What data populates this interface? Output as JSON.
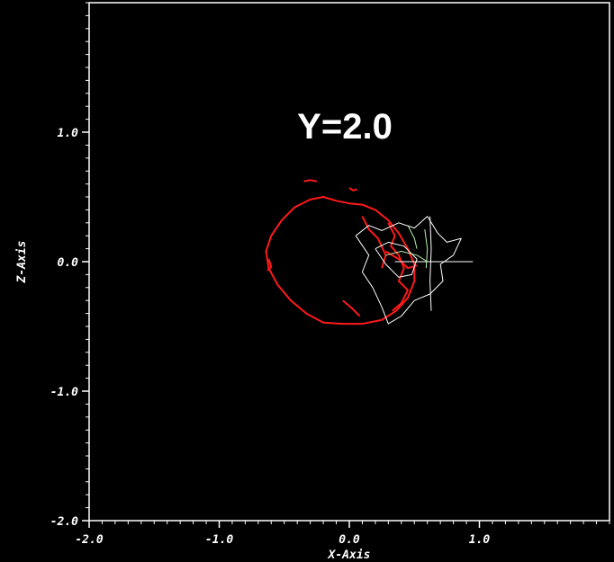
{
  "chart_data": {
    "type": "contour",
    "title": "Y=2.0",
    "xlabel": "X-Axis",
    "ylabel": "Z-Axis",
    "xlim": [
      -2.0,
      2.0
    ],
    "ylim": [
      -2.0,
      2.0
    ],
    "x_ticks": [
      {
        "value": -2.0,
        "label": "-2.0"
      },
      {
        "value": -1.0,
        "label": "-1.0"
      },
      {
        "value": 0.0,
        "label": "0.0"
      },
      {
        "value": 1.0,
        "label": "1.0"
      }
    ],
    "y_ticks": [
      {
        "value": -2.0,
        "label": "-2.0"
      },
      {
        "value": -1.0,
        "label": "-1.0"
      },
      {
        "value": 0.0,
        "label": "0.0"
      },
      {
        "value": 1.0,
        "label": "1.0"
      }
    ],
    "grid": false,
    "background": "#000000",
    "axis_color": "#ffffff",
    "series": [
      {
        "color": "#ff1a1a",
        "contours": [
          [
            [
              -0.3,
              0.48
            ],
            [
              -0.2,
              0.5
            ],
            [
              -0.1,
              0.47
            ],
            [
              0.0,
              0.45
            ],
            [
              0.1,
              0.44
            ],
            [
              0.2,
              0.4
            ],
            [
              0.3,
              0.32
            ],
            [
              0.38,
              0.22
            ],
            [
              0.45,
              0.1
            ],
            [
              0.5,
              -0.02
            ],
            [
              0.5,
              -0.15
            ],
            [
              0.45,
              -0.28
            ],
            [
              0.36,
              -0.38
            ],
            [
              0.25,
              -0.45
            ],
            [
              0.1,
              -0.48
            ],
            [
              -0.05,
              -0.48
            ],
            [
              -0.2,
              -0.47
            ],
            [
              -0.33,
              -0.4
            ],
            [
              -0.45,
              -0.3
            ],
            [
              -0.55,
              -0.18
            ],
            [
              -0.62,
              -0.05
            ],
            [
              -0.64,
              0.08
            ],
            [
              -0.6,
              0.2
            ],
            [
              -0.52,
              0.32
            ],
            [
              -0.42,
              0.42
            ],
            [
              -0.3,
              0.48
            ]
          ],
          [
            [
              0.3,
              0.3
            ],
            [
              0.35,
              0.2
            ],
            [
              0.32,
              0.12
            ],
            [
              0.38,
              0.05
            ],
            [
              0.42,
              -0.05
            ],
            [
              0.38,
              -0.15
            ],
            [
              0.45,
              -0.22
            ],
            [
              0.4,
              -0.32
            ],
            [
              0.33,
              -0.38
            ]
          ],
          [
            [
              0.1,
              0.35
            ],
            [
              0.15,
              0.25
            ],
            [
              0.22,
              0.18
            ],
            [
              0.28,
              0.05
            ],
            [
              0.25,
              -0.05
            ]
          ],
          [
            [
              -0.05,
              -0.3
            ],
            [
              0.02,
              -0.36
            ],
            [
              0.08,
              -0.42
            ]
          ],
          [
            [
              -0.35,
              0.62
            ],
            [
              -0.3,
              0.63
            ],
            [
              -0.25,
              0.62
            ]
          ],
          [
            [
              0.0,
              0.57
            ],
            [
              0.03,
              0.55
            ],
            [
              0.06,
              0.56
            ]
          ],
          [
            [
              0.28,
              0.08
            ],
            [
              0.38,
              0.02
            ],
            [
              0.45,
              -0.05
            ],
            [
              0.52,
              -0.03
            ]
          ],
          [
            [
              -0.62,
              0.02
            ],
            [
              -0.6,
              -0.04
            ],
            [
              -0.63,
              -0.07
            ]
          ]
        ]
      },
      {
        "color": "#ffffff",
        "contours": [
          [
            [
              0.05,
              0.2
            ],
            [
              0.15,
              0.28
            ],
            [
              0.25,
              0.24
            ],
            [
              0.38,
              0.3
            ],
            [
              0.5,
              0.26
            ],
            [
              0.6,
              0.35
            ],
            [
              0.68,
              0.22
            ],
            [
              0.75,
              0.15
            ],
            [
              0.86,
              0.18
            ],
            [
              0.8,
              0.05
            ],
            [
              0.7,
              -0.02
            ],
            [
              0.72,
              -0.15
            ],
            [
              0.62,
              -0.25
            ],
            [
              0.5,
              -0.3
            ],
            [
              0.4,
              -0.42
            ],
            [
              0.3,
              -0.48
            ],
            [
              0.25,
              -0.35
            ],
            [
              0.18,
              -0.2
            ],
            [
              0.1,
              -0.08
            ],
            [
              0.15,
              0.05
            ],
            [
              0.05,
              0.2
            ]
          ],
          [
            [
              0.2,
              0.1
            ],
            [
              0.3,
              0.15
            ],
            [
              0.42,
              0.12
            ],
            [
              0.52,
              0.02
            ],
            [
              0.48,
              -0.1
            ],
            [
              0.38,
              -0.12
            ],
            [
              0.28,
              -0.02
            ],
            [
              0.2,
              0.1
            ]
          ],
          [
            [
              0.35,
              0.0
            ],
            [
              0.55,
              0.0
            ],
            [
              0.75,
              0.0
            ],
            [
              0.95,
              0.0
            ]
          ],
          [
            [
              0.62,
              0.35
            ],
            [
              0.63,
              0.1
            ],
            [
              0.62,
              -0.15
            ],
            [
              0.63,
              -0.38
            ]
          ]
        ]
      },
      {
        "color": "#b8f0b0",
        "contours": [
          [
            [
              0.28,
              0.05
            ],
            [
              0.4,
              0.08
            ],
            [
              0.52,
              0.05
            ],
            [
              0.6,
              0.0
            ]
          ],
          [
            [
              0.58,
              0.25
            ],
            [
              0.6,
              0.1
            ],
            [
              0.59,
              -0.05
            ]
          ],
          [
            [
              0.45,
              0.28
            ],
            [
              0.5,
              0.18
            ],
            [
              0.52,
              0.1
            ]
          ]
        ]
      }
    ]
  }
}
